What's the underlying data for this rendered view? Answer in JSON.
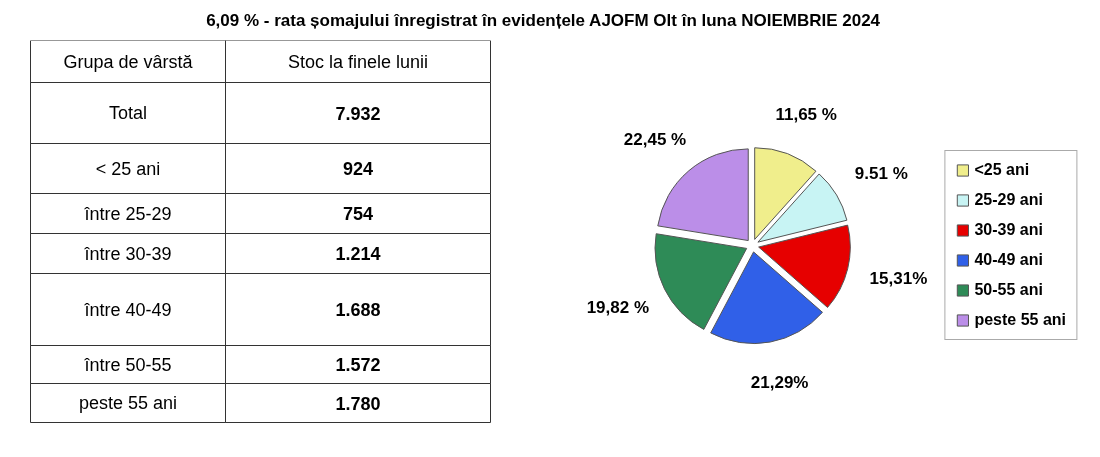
{
  "chart_data": [
    {
      "type": "other",
      "title": "6,09 % -  rata șomajului înregistrat în evidențele AJOFM  Olt în luna  NOIEMBRIE 2024",
      "annotations": [
        "Grupa de vârstă",
        "Stoc la finele lunii"
      ],
      "categories": [
        "Total",
        "< 25 ani",
        "între 25-29",
        "între 30-39",
        "între 40-49",
        "între 50-55",
        "peste 55 ani"
      ],
      "values": [
        7932,
        924,
        754,
        1214,
        1688,
        1572,
        1780
      ],
      "value_labels": [
        "7.932",
        "924",
        "754",
        "1.214",
        "1.688",
        "1.572",
        "1.780"
      ]
    },
    {
      "type": "pie",
      "categories": [
        "<25 ani",
        "25-29 ani",
        "30-39 ani",
        "40-49 ani",
        "50-55 ani",
        "peste 55 ani"
      ],
      "values": [
        11.65,
        9.51,
        15.31,
        21.29,
        19.82,
        22.45
      ],
      "colors": [
        "#f0ee8c",
        "#c8f4f4",
        "#e60000",
        "#3060e8",
        "#2e8b57",
        "#bb8ee8"
      ],
      "value_labels": [
        "11,65 %",
        "9.51 %",
        "15,31%",
        "21,29%",
        "19,82 %",
        "22,45 %"
      ],
      "legend": "right"
    }
  ]
}
